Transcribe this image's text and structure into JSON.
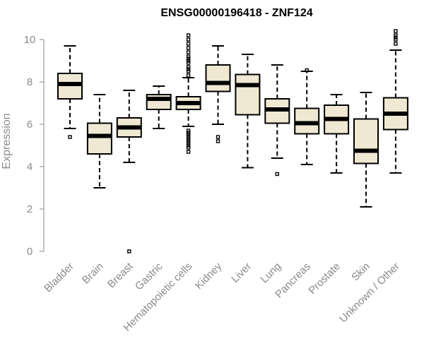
{
  "chart_data": {
    "type": "box",
    "title": "ENSG00000196418 - ZNF124",
    "xlabel": "",
    "ylabel": "Expression",
    "ylim": [
      0,
      10
    ],
    "yticks": [
      "0",
      "2",
      "4",
      "6",
      "8",
      "10"
    ],
    "categories": [
      "Bladder",
      "Brain",
      "Breast",
      "Gastric",
      "Hematopoietic cells",
      "Kidney",
      "Liver",
      "Lung",
      "Pancreas",
      "Prostate",
      "Skin",
      "Unknown / Other"
    ],
    "series": [
      {
        "values": [
          {
            "whisker_low": 5.8,
            "q1": 7.2,
            "median": 7.9,
            "q3": 8.4,
            "whisker_high": 9.7,
            "outliers": [
              5.4
            ]
          },
          {
            "whisker_low": 3.0,
            "q1": 4.6,
            "median": 5.45,
            "q3": 6.05,
            "whisker_high": 7.4,
            "outliers": []
          },
          {
            "whisker_low": 4.2,
            "q1": 5.4,
            "median": 5.85,
            "q3": 6.3,
            "whisker_high": 7.6,
            "outliers": [
              0.0
            ]
          },
          {
            "whisker_low": 5.8,
            "q1": 6.7,
            "median": 7.2,
            "q3": 7.4,
            "whisker_high": 7.8,
            "outliers": []
          },
          {
            "whisker_low": 5.9,
            "q1": 6.7,
            "median": 7.0,
            "q3": 7.3,
            "whisker_high": 8.2,
            "outliers": [
              4.7,
              4.9,
              5.0,
              5.1,
              5.2,
              5.3,
              5.4,
              5.5,
              5.6,
              5.7,
              8.3,
              8.5,
              8.6,
              8.7,
              8.9,
              9.0,
              9.1,
              9.2,
              9.4,
              9.6,
              9.8,
              10.0,
              10.2
            ]
          },
          {
            "whisker_low": 6.0,
            "q1": 7.55,
            "median": 7.95,
            "q3": 8.8,
            "whisker_high": 9.7,
            "outliers": [
              5.2,
              5.4
            ]
          },
          {
            "whisker_low": 3.95,
            "q1": 6.45,
            "median": 7.85,
            "q3": 8.35,
            "whisker_high": 9.3,
            "outliers": []
          },
          {
            "whisker_low": 4.4,
            "q1": 6.05,
            "median": 6.7,
            "q3": 7.2,
            "whisker_high": 8.8,
            "outliers": [
              3.65
            ]
          },
          {
            "whisker_low": 4.1,
            "q1": 5.55,
            "median": 6.05,
            "q3": 6.75,
            "whisker_high": 8.5,
            "outliers": [
              8.55
            ]
          },
          {
            "whisker_low": 3.7,
            "q1": 5.55,
            "median": 6.25,
            "q3": 6.9,
            "whisker_high": 7.4,
            "outliers": []
          },
          {
            "whisker_low": 2.1,
            "q1": 4.15,
            "median": 4.75,
            "q3": 6.25,
            "whisker_high": 7.5,
            "outliers": []
          },
          {
            "whisker_low": 3.7,
            "q1": 5.75,
            "median": 6.5,
            "q3": 7.25,
            "whisker_high": 9.5,
            "outliers": [
              9.8,
              10.0,
              10.1,
              10.2,
              10.4
            ]
          }
        ]
      }
    ],
    "colors": {
      "box_fill": "#efe8d2",
      "box_stroke": "#000000",
      "axis": "#8a8a8a",
      "title": "#000000"
    },
    "grid": false,
    "legend": "none"
  }
}
